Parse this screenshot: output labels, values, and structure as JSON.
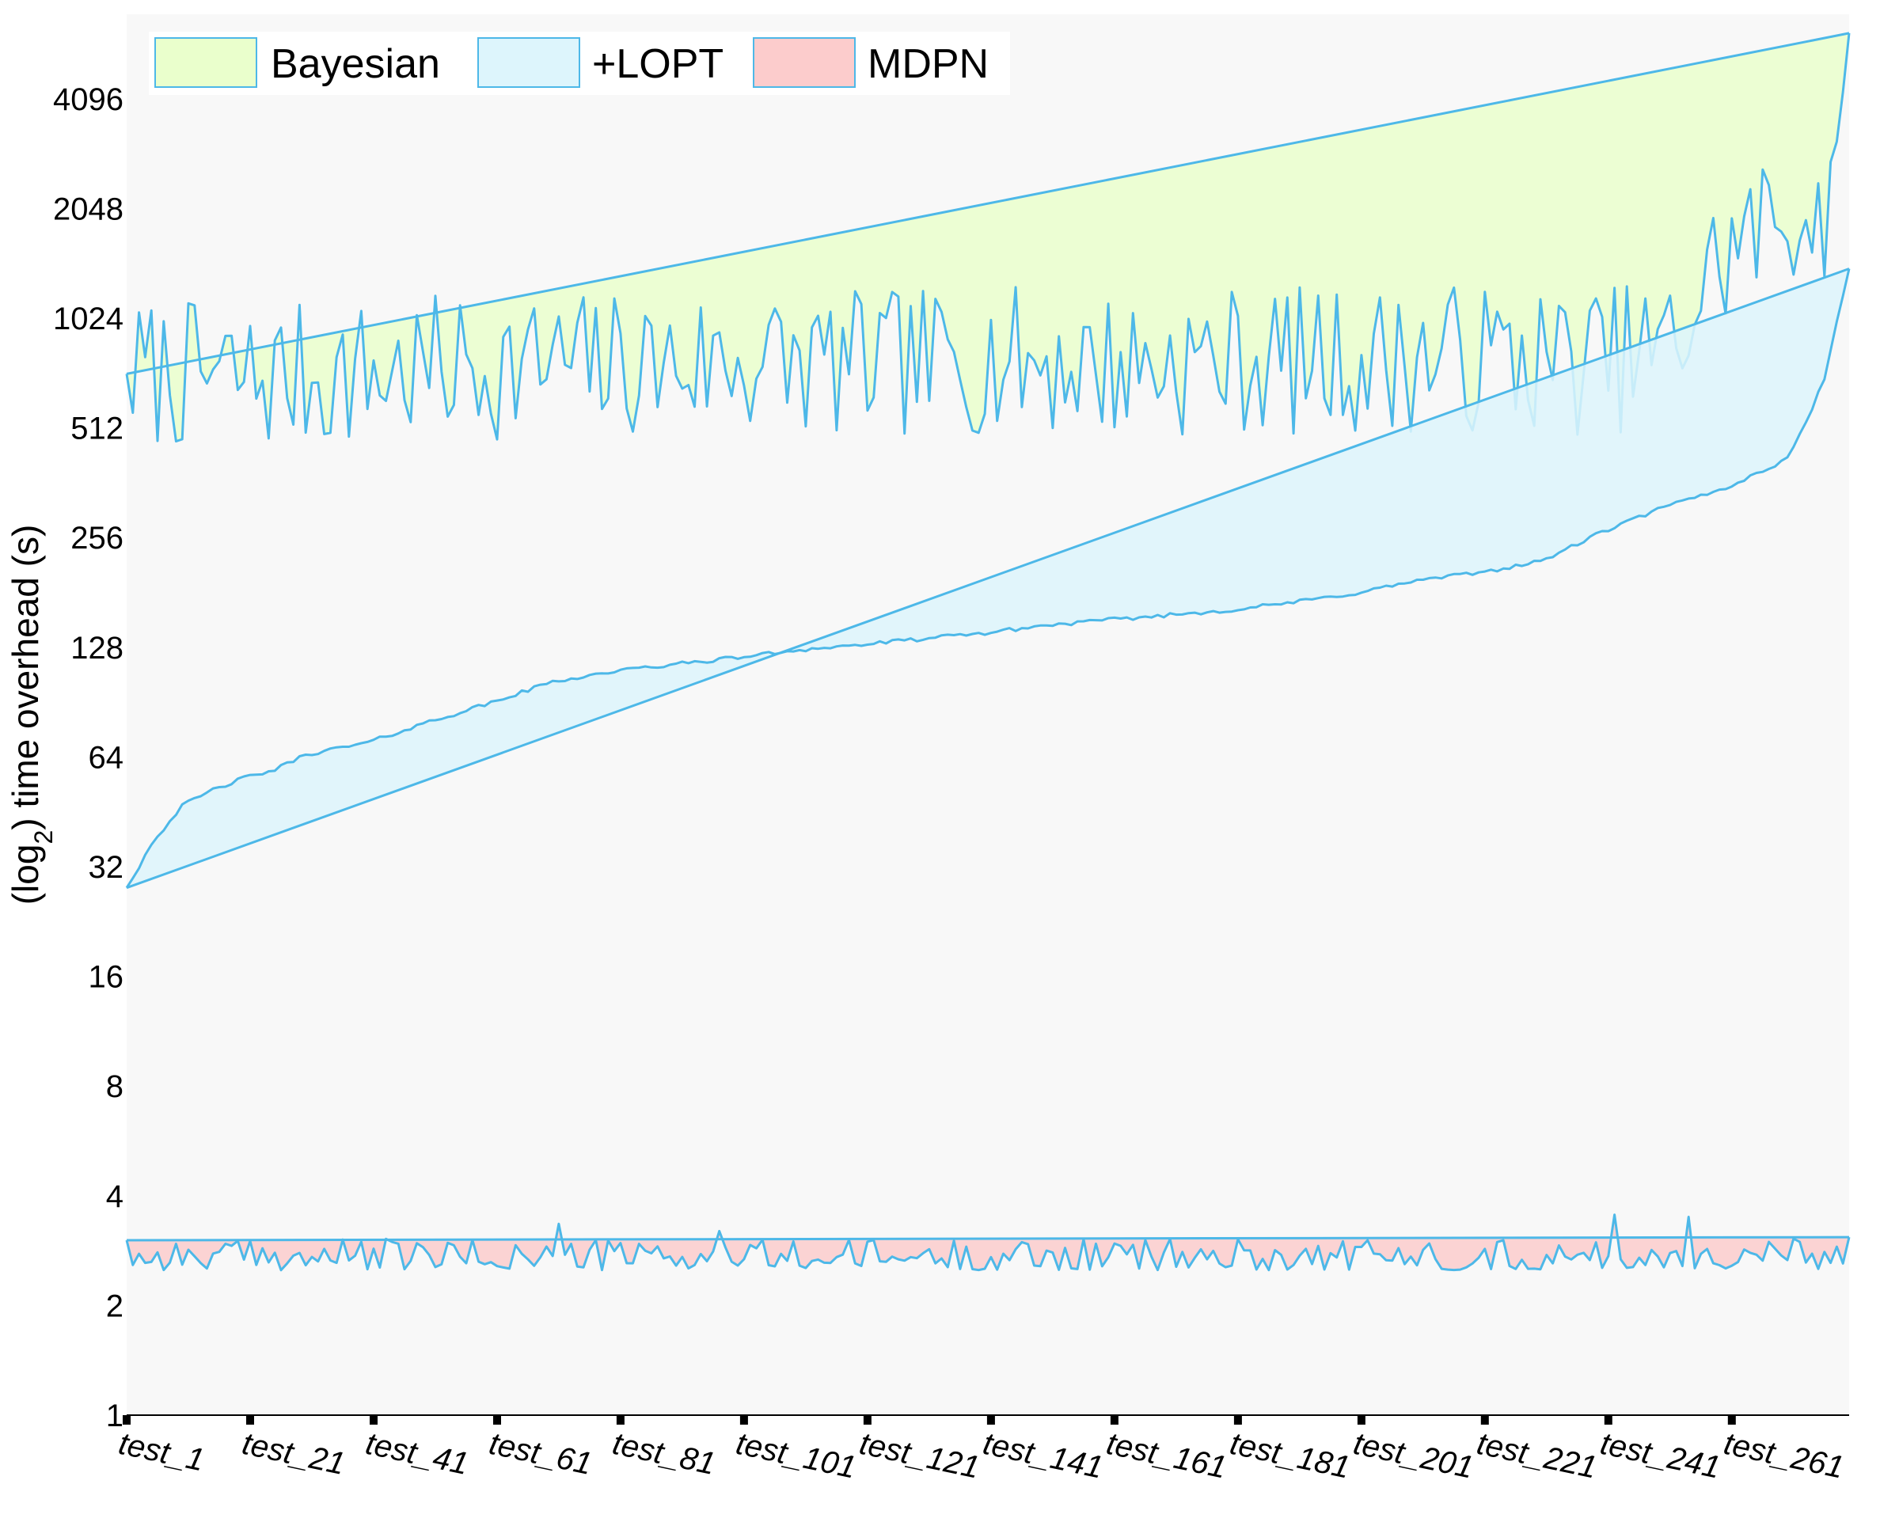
{
  "chart_data": {
    "type": "area",
    "title": "",
    "xlabel": "",
    "ylabel": "(log2) time overhead (s)",
    "y_scale": "log2",
    "ylim": [
      1,
      7000
    ],
    "x_count": 280,
    "yticks": [
      1,
      2,
      4,
      8,
      16,
      32,
      64,
      128,
      256,
      512,
      1024,
      2048,
      4096
    ],
    "ytick_labels": [
      "1",
      "2",
      "4",
      "8",
      "16",
      "32",
      "64",
      "128",
      "256",
      "512",
      "1024",
      "2048",
      "4096"
    ],
    "xticks": [
      1,
      21,
      41,
      61,
      81,
      101,
      121,
      141,
      161,
      181,
      201,
      221,
      241,
      261
    ],
    "xtick_labels": [
      "test_1",
      "test_21",
      "test_41",
      "test_61",
      "test_81",
      "test_101",
      "test_121",
      "test_141",
      "test_161",
      "test_181",
      "test_201",
      "test_221",
      "test_241",
      "test_261"
    ],
    "grid": false,
    "legend_position": "top-left",
    "colors": {
      "plot_background": "#f8f8f8",
      "line": "#4db8e8",
      "bayesian_fill": "#eaffcc",
      "lopt_fill": "#ddf5fc",
      "mdpn_fill": "#fccccc"
    },
    "series": [
      {
        "name": "Bayesian",
        "boundary_line": {
          "start": [
            1,
            720
          ],
          "end": [
            280,
            6200
          ]
        },
        "level_anchors": [
          [
            1,
            720
          ],
          [
            6,
            720
          ],
          [
            21,
            700
          ],
          [
            41,
            720
          ],
          [
            61,
            760
          ],
          [
            81,
            760
          ],
          [
            101,
            780
          ],
          [
            121,
            760
          ],
          [
            141,
            790
          ],
          [
            161,
            760
          ],
          [
            181,
            790
          ],
          [
            201,
            780
          ],
          [
            221,
            800
          ],
          [
            235,
            780
          ],
          [
            245,
            800
          ],
          [
            252,
            860
          ],
          [
            258,
            1400
          ],
          [
            265,
            1800
          ],
          [
            272,
            2000
          ],
          [
            278,
            2000
          ],
          [
            280,
            6200
          ]
        ],
        "jitter_ratio": 1.6
      },
      {
        "name": "+LOPT",
        "boundary_line": {
          "start": [
            1,
            28
          ],
          "end": [
            280,
            1400
          ]
        },
        "anchors": [
          [
            1,
            28
          ],
          [
            3,
            32
          ],
          [
            5,
            37
          ],
          [
            10,
            47
          ],
          [
            15,
            52
          ],
          [
            20,
            56
          ],
          [
            25,
            59
          ],
          [
            30,
            65
          ],
          [
            40,
            70
          ],
          [
            50,
            80
          ],
          [
            60,
            90
          ],
          [
            70,
            103
          ],
          [
            80,
            110
          ],
          [
            90,
            115
          ],
          [
            100,
            120
          ],
          [
            110,
            126
          ],
          [
            120,
            130
          ],
          [
            130,
            135
          ],
          [
            140,
            140
          ],
          [
            150,
            147
          ],
          [
            160,
            152
          ],
          [
            170,
            157
          ],
          [
            180,
            162
          ],
          [
            190,
            170
          ],
          [
            200,
            180
          ],
          [
            210,
            195
          ],
          [
            220,
            205
          ],
          [
            230,
            220
          ],
          [
            240,
            265
          ],
          [
            250,
            310
          ],
          [
            260,
            350
          ],
          [
            270,
            420
          ],
          [
            274,
            580
          ],
          [
            276,
            700
          ],
          [
            278,
            1000
          ],
          [
            280,
            1400
          ]
        ]
      },
      {
        "name": "MDPN",
        "boundary_line": {
          "start": [
            1,
            3.02
          ],
          "end": [
            280,
            3.08
          ]
        },
        "baseline": 2.7,
        "jitter_range": [
          2.5,
          3.05
        ],
        "spikes": [
          [
            71,
            3.35
          ],
          [
            97,
            3.2
          ],
          [
            242,
            3.55
          ],
          [
            254,
            3.5
          ]
        ]
      }
    ]
  }
}
